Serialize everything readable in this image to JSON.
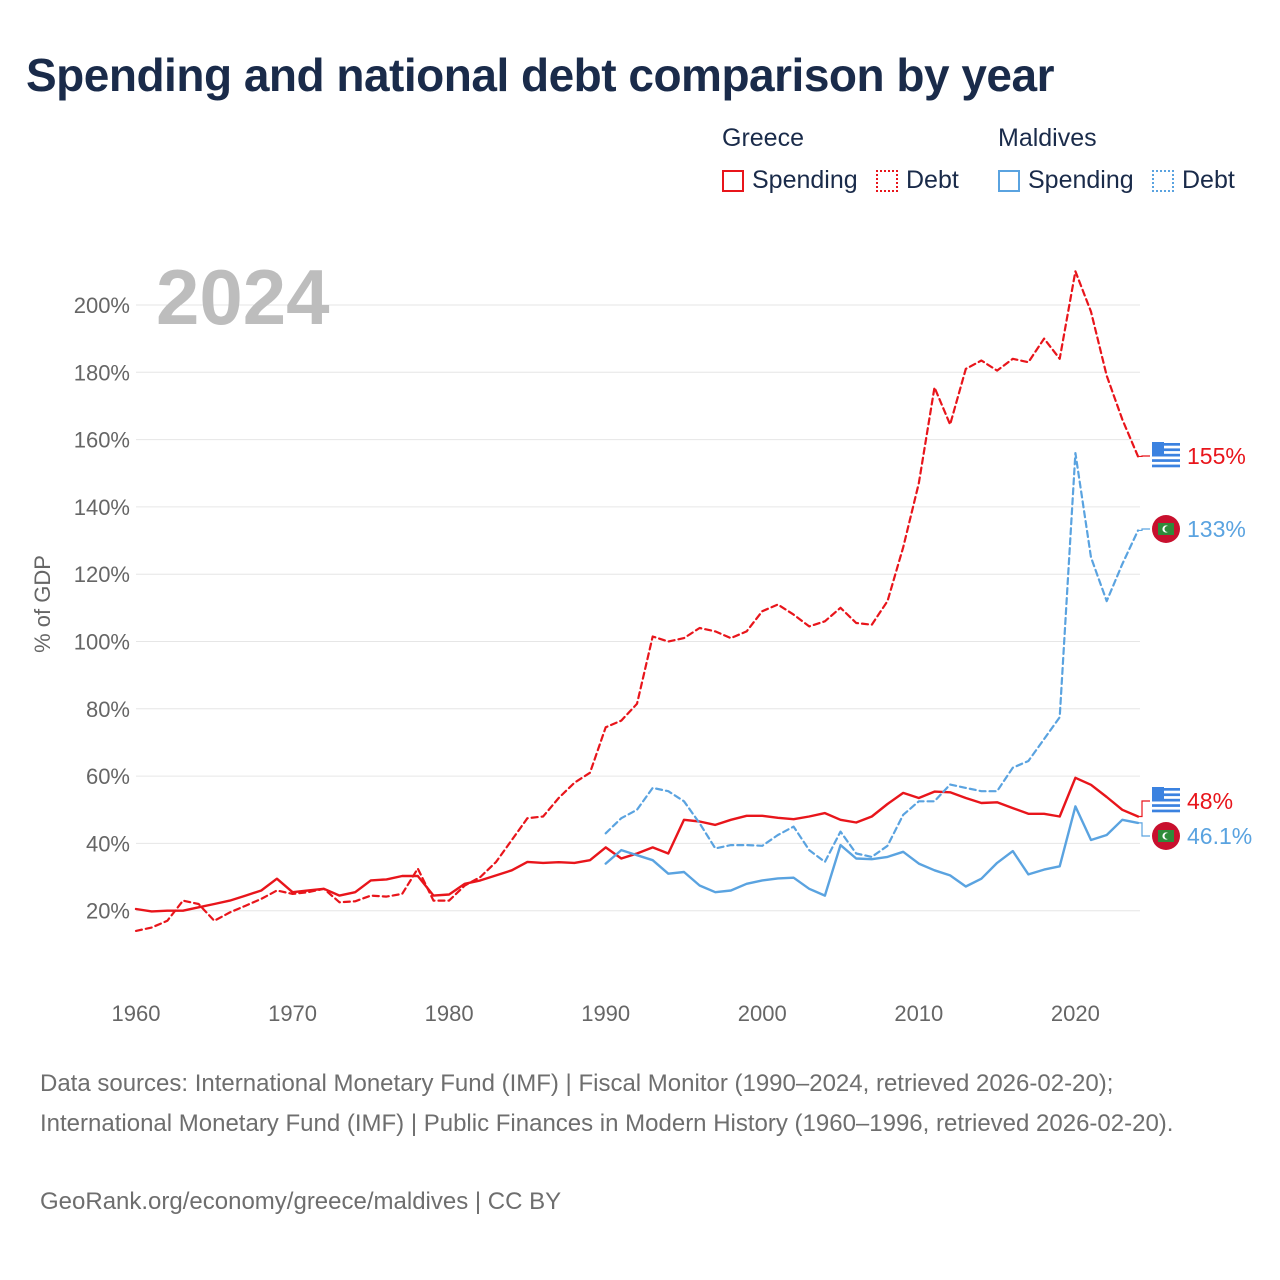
{
  "title": "Spending and national debt comparison by year",
  "legend": {
    "groups": [
      {
        "country": "Greece",
        "items": [
          {
            "label": "Spending",
            "style": "solid",
            "color": "#e8151b"
          },
          {
            "label": "Debt",
            "style": "dotted",
            "color": "#e8151b"
          }
        ]
      },
      {
        "country": "Maldives",
        "items": [
          {
            "label": "Spending",
            "style": "solid",
            "color": "#5aa3e0"
          },
          {
            "label": "Debt",
            "style": "dotted",
            "color": "#5aa3e0"
          }
        ]
      }
    ]
  },
  "footer": {
    "sources": "Data sources: International Monetary Fund (IMF) | Fiscal Monitor (1990–2024, retrieved 2026-02-20); International Monetary Fund (IMF) | Public Finances in Modern History (1960–1996, retrieved 2026-02-20).",
    "credit": "GeoRank.org/economy/greece/maldives | CC BY"
  },
  "chart_data": {
    "type": "line",
    "year_label": "2024",
    "ylabel": "% of GDP",
    "xlim": [
      1960,
      2024
    ],
    "ylim": [
      0,
      210
    ],
    "x_ticks": [
      1960,
      1970,
      1980,
      1990,
      2000,
      2010,
      2020
    ],
    "y_ticks": [
      20,
      40,
      60,
      80,
      100,
      120,
      140,
      160,
      180,
      200
    ],
    "y_tick_labels": [
      "20%",
      "40%",
      "60%",
      "80%",
      "100%",
      "120%",
      "140%",
      "160%",
      "180%",
      "200%"
    ],
    "series": [
      {
        "name": "Greece Spending",
        "country": "Greece",
        "kind": "spending",
        "color": "#e8151b",
        "dash": false,
        "end_label": "48%",
        "x": [
          1960,
          1961,
          1962,
          1963,
          1964,
          1965,
          1966,
          1967,
          1968,
          1969,
          1970,
          1971,
          1972,
          1973,
          1974,
          1975,
          1976,
          1977,
          1978,
          1979,
          1980,
          1981,
          1982,
          1983,
          1984,
          1985,
          1986,
          1987,
          1988,
          1989,
          1990,
          1991,
          1992,
          1993,
          1994,
          1995,
          1996,
          1997,
          1998,
          1999,
          2000,
          2001,
          2002,
          2003,
          2004,
          2005,
          2006,
          2007,
          2008,
          2009,
          2010,
          2011,
          2012,
          2013,
          2014,
          2015,
          2016,
          2017,
          2018,
          2019,
          2020,
          2021,
          2022,
          2023,
          2024
        ],
        "values": [
          20.5,
          19.8,
          20,
          20,
          21,
          22,
          23,
          24.5,
          26,
          29.5,
          25.5,
          26,
          26.5,
          24.5,
          25.5,
          29,
          29.3,
          30.3,
          30.3,
          24.5,
          24.8,
          28,
          29,
          30.5,
          32,
          34.5,
          34.2,
          34.4,
          34.2,
          35,
          38.8,
          35.5,
          37,
          38.8,
          37,
          47,
          46.5,
          45.5,
          47,
          48.2,
          48.2,
          47.6,
          47.2,
          48,
          49,
          47,
          46.2,
          48,
          51.7,
          55,
          53.5,
          55.4,
          55.2,
          53.5,
          52,
          52.2,
          50.5,
          48.8,
          48.8,
          48,
          59.5,
          57.4,
          53.8,
          50,
          48
        ]
      },
      {
        "name": "Greece Debt",
        "country": "Greece",
        "kind": "debt",
        "color": "#e8151b",
        "dash": true,
        "end_label": "155%",
        "x": [
          1960,
          1961,
          1962,
          1963,
          1964,
          1965,
          1966,
          1967,
          1968,
          1969,
          1970,
          1971,
          1972,
          1973,
          1974,
          1975,
          1976,
          1977,
          1978,
          1979,
          1980,
          1981,
          1982,
          1983,
          1984,
          1985,
          1986,
          1987,
          1988,
          1989,
          1990,
          1991,
          1992,
          1993,
          1994,
          1995,
          1996,
          1997,
          1998,
          1999,
          2000,
          2001,
          2002,
          2003,
          2004,
          2005,
          2006,
          2007,
          2008,
          2009,
          2010,
          2011,
          2012,
          2013,
          2014,
          2015,
          2016,
          2017,
          2018,
          2019,
          2020,
          2021,
          2022,
          2023,
          2024
        ],
        "values": [
          14,
          15,
          17,
          23,
          22,
          17,
          19.5,
          21.5,
          23.5,
          26,
          25,
          25.5,
          26.5,
          22.5,
          22.8,
          24.5,
          24.2,
          25,
          32.5,
          23,
          23,
          27.5,
          30,
          34.5,
          41,
          47.5,
          48,
          53.5,
          58,
          61,
          74.5,
          76.5,
          81.5,
          101.5,
          100,
          101,
          104,
          103,
          101,
          103,
          109,
          111,
          108,
          104.5,
          106,
          110,
          105.5,
          105,
          112,
          128,
          147,
          175.5,
          164.5,
          181,
          183.5,
          180.5,
          184,
          183,
          190,
          184,
          210,
          198,
          179,
          166,
          155
        ]
      },
      {
        "name": "Maldives Spending",
        "country": "Maldives",
        "kind": "spending",
        "color": "#5aa3e0",
        "dash": false,
        "end_label": "46.1%",
        "x": [
          1990,
          1991,
          1992,
          1993,
          1994,
          1995,
          1996,
          1997,
          1998,
          1999,
          2000,
          2001,
          2002,
          2003,
          2004,
          2005,
          2006,
          2007,
          2008,
          2009,
          2010,
          2011,
          2012,
          2013,
          2014,
          2015,
          2016,
          2017,
          2018,
          2019,
          2020,
          2021,
          2022,
          2023,
          2024
        ],
        "values": [
          34,
          38,
          36.5,
          35,
          31,
          31.5,
          27.5,
          25.5,
          26,
          28,
          29,
          29.6,
          29.8,
          26.5,
          24.5,
          39.5,
          35.5,
          35.3,
          36,
          37.5,
          34,
          32,
          30.5,
          27.2,
          29.5,
          34.2,
          37.7,
          30.8,
          32.2,
          33.2,
          51,
          41,
          42.5,
          47,
          46.1
        ]
      },
      {
        "name": "Maldives Debt",
        "country": "Maldives",
        "kind": "debt",
        "color": "#5aa3e0",
        "dash": true,
        "end_label": "133%",
        "x": [
          1990,
          1991,
          1992,
          1993,
          1994,
          1995,
          1996,
          1997,
          1998,
          1999,
          2000,
          2001,
          2002,
          2003,
          2004,
          2005,
          2006,
          2007,
          2008,
          2009,
          2010,
          2011,
          2012,
          2013,
          2014,
          2015,
          2016,
          2017,
          2018,
          2019,
          2020,
          2021,
          2022,
          2023,
          2024
        ],
        "values": [
          43,
          47.5,
          50,
          56.5,
          55.5,
          52.5,
          46,
          38.5,
          39.5,
          39.5,
          39.3,
          42.5,
          45,
          38,
          34.5,
          43.5,
          37,
          36,
          39.3,
          48.5,
          52.5,
          52.5,
          57.5,
          56.5,
          55.5,
          55.5,
          62.5,
          64.5,
          71,
          77.5,
          156,
          125,
          112,
          123,
          133
        ]
      }
    ]
  }
}
